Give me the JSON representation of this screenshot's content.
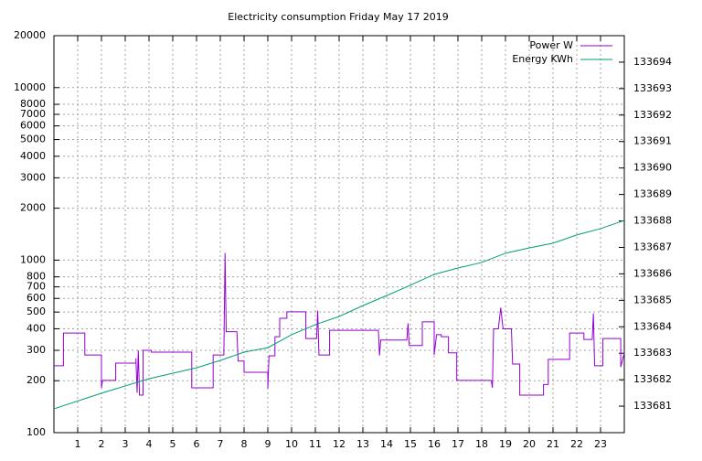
{
  "chart_data": {
    "type": "line",
    "title": "Electricity consumption Friday May 17 2019",
    "xlim": [
      0,
      24
    ],
    "xticks": [
      1,
      2,
      3,
      4,
      5,
      6,
      7,
      8,
      9,
      10,
      11,
      12,
      13,
      14,
      15,
      16,
      17,
      18,
      19,
      20,
      21,
      22,
      23
    ],
    "ylim": [
      100,
      20000
    ],
    "yscale": "log",
    "yticks": [
      100,
      200,
      300,
      400,
      500,
      600,
      700,
      800,
      1000,
      2000,
      3000,
      4000,
      5000,
      6000,
      7000,
      8000,
      10000,
      20000
    ],
    "y2lim": [
      133680,
      133695
    ],
    "y2ticks": [
      133681,
      133682,
      133683,
      133684,
      133685,
      133686,
      133687,
      133688,
      133689,
      133690,
      133691,
      133692,
      133693,
      133694
    ],
    "grid": true,
    "legend": "top-right",
    "series": [
      {
        "name": "Power W",
        "color": "#9400d3",
        "x": [
          0,
          0.4,
          0.4,
          1.3,
          1.3,
          2.0,
          2.0,
          2.05,
          2.6,
          2.6,
          3.45,
          3.45,
          3.5,
          3.55,
          3.6,
          3.75,
          3.75,
          4.1,
          4.1,
          5.8,
          5.8,
          6.7,
          6.7,
          7.15,
          7.2,
          7.25,
          7.7,
          7.75,
          8.0,
          8.0,
          9.0,
          9.0,
          9.05,
          9.3,
          9.3,
          9.5,
          9.5,
          9.8,
          9.8,
          10.6,
          10.6,
          11.05,
          11.1,
          11.15,
          11.6,
          11.6,
          13.65,
          13.7,
          13.75,
          14.85,
          14.9,
          14.95,
          15.5,
          15.5,
          16.0,
          16.0,
          16.1,
          16.3,
          16.3,
          16.6,
          16.6,
          16.95,
          16.95,
          18.4,
          18.45,
          18.5,
          18.7,
          18.8,
          18.9,
          19.25,
          19.3,
          19.6,
          19.6,
          20.6,
          20.6,
          20.8,
          20.8,
          21.7,
          21.7,
          22.3,
          22.3,
          22.65,
          22.7,
          22.75,
          23.1,
          23.1,
          23.85,
          23.85,
          24
        ],
        "values": [
          244,
          244,
          378,
          378,
          282,
          282,
          182,
          201,
          201,
          253,
          253,
          270,
          170,
          300,
          165,
          165,
          300,
          300,
          293,
          293,
          182,
          182,
          282,
          282,
          1100,
          385,
          385,
          260,
          260,
          224,
          224,
          180,
          279,
          279,
          360,
          360,
          460,
          460,
          502,
          502,
          351,
          351,
          510,
          282,
          282,
          392,
          392,
          280,
          344,
          344,
          430,
          320,
          320,
          439,
          439,
          282,
          370,
          370,
          360,
          360,
          290,
          290,
          201,
          201,
          182,
          400,
          400,
          530,
          400,
          400,
          250,
          250,
          165,
          165,
          190,
          190,
          266,
          266,
          378,
          378,
          347,
          347,
          490,
          244,
          244,
          351,
          351,
          240,
          290
        ]
      },
      {
        "name": "Energy KWh",
        "color": "#009e73",
        "axis": "y2",
        "x": [
          0,
          2,
          4,
          6,
          7,
          8,
          9,
          10,
          11,
          12,
          13,
          14,
          15,
          16,
          17,
          18,
          19,
          20,
          21,
          22,
          23,
          24
        ],
        "values": [
          133680.9,
          133681.49,
          133682.04,
          133682.45,
          133682.73,
          133683.04,
          133683.21,
          133683.7,
          133684.08,
          133684.39,
          133684.8,
          133685.18,
          133685.57,
          133685.98,
          133686.22,
          133686.43,
          133686.78,
          133686.98,
          133687.16,
          133687.47,
          133687.71,
          133688.02
        ]
      }
    ]
  }
}
